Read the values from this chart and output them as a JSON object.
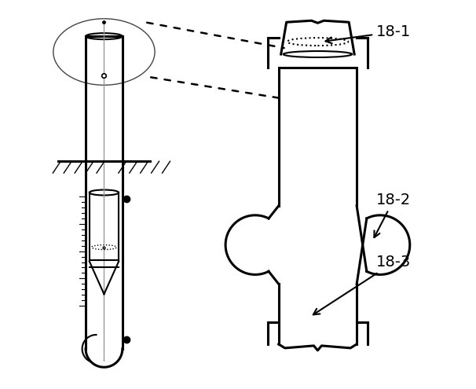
{
  "bg_color": "#ffffff",
  "line_color": "#000000",
  "lw_thick": 2.2,
  "lw_medium": 1.5,
  "lw_thin": 1.0,
  "lw_hair": 0.7
}
